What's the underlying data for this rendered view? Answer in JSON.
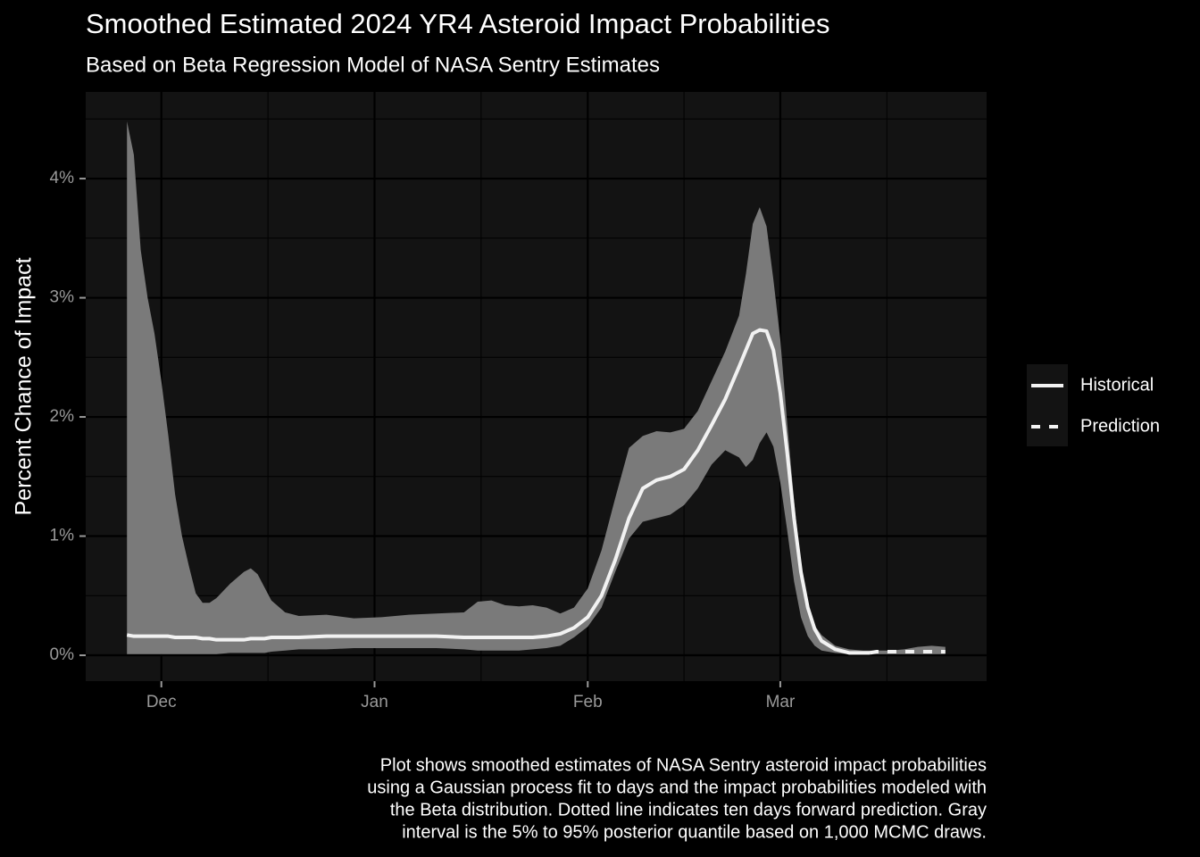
{
  "chart_data": {
    "type": "line",
    "title": "Smoothed Estimated 2024 YR4 Asteroid Impact Probabilities",
    "subtitle": "Based on Beta Regression Model of NASA Sentry Estimates",
    "ylabel": "Percent Chance of Impact",
    "caption": [
      "Plot shows smoothed estimates of NASA Sentry asteroid impact probabilities",
      "using a Gaussian process fit to days and the impact probabilities modeled with",
      "the Beta distribution. Dotted line indicates ten days forward prediction. Gray",
      "interval is the 5% to 95% posterior quantile based on 1,000 MCMC draws."
    ],
    "x": [
      -5,
      -4,
      -3,
      -2,
      -1,
      0,
      1,
      2,
      3,
      4,
      5,
      6,
      7,
      8,
      10,
      12,
      13,
      14,
      15,
      16,
      18,
      20,
      24,
      28,
      32,
      36,
      40,
      44,
      46,
      48,
      50,
      52,
      54,
      56,
      58,
      60,
      62,
      64,
      66,
      68,
      70,
      72,
      74,
      76,
      78,
      80,
      82,
      84,
      85,
      86,
      87,
      88,
      89,
      90,
      91,
      92,
      93,
      94,
      95,
      96,
      98,
      100,
      102,
      103,
      104,
      106,
      108,
      110,
      112,
      114
    ],
    "series": [
      {
        "name": "Historical",
        "color": "#f2f2f2",
        "dashed": false,
        "values": [
          0.17,
          0.16,
          0.16,
          0.16,
          0.16,
          0.16,
          0.16,
          0.15,
          0.15,
          0.15,
          0.15,
          0.14,
          0.14,
          0.13,
          0.13,
          0.13,
          0.14,
          0.14,
          0.14,
          0.15,
          0.15,
          0.15,
          0.16,
          0.16,
          0.16,
          0.16,
          0.16,
          0.15,
          0.15,
          0.15,
          0.15,
          0.15,
          0.15,
          0.16,
          0.18,
          0.23,
          0.32,
          0.5,
          0.8,
          1.15,
          1.4,
          1.47,
          1.5,
          1.56,
          1.72,
          1.93,
          2.15,
          2.42,
          2.56,
          2.7,
          2.73,
          2.72,
          2.56,
          2.2,
          1.7,
          1.15,
          0.7,
          0.4,
          0.22,
          0.12,
          0.05,
          0.02,
          0.02,
          0.02,
          null,
          null,
          null,
          null,
          null,
          null
        ]
      },
      {
        "name": "Prediction",
        "color": "#f2f2f2",
        "dashed": true,
        "values": [
          null,
          null,
          null,
          null,
          null,
          null,
          null,
          null,
          null,
          null,
          null,
          null,
          null,
          null,
          null,
          null,
          null,
          null,
          null,
          null,
          null,
          null,
          null,
          null,
          null,
          null,
          null,
          null,
          null,
          null,
          null,
          null,
          null,
          null,
          null,
          null,
          null,
          null,
          null,
          null,
          null,
          null,
          null,
          null,
          null,
          null,
          null,
          null,
          null,
          null,
          null,
          null,
          null,
          null,
          null,
          null,
          null,
          null,
          null,
          null,
          null,
          null,
          null,
          0.02,
          0.03,
          0.03,
          0.03,
          0.03,
          0.03,
          0.03
        ]
      }
    ],
    "band": {
      "color": "#7a7a7a",
      "upper": [
        4.48,
        4.2,
        3.4,
        3.0,
        2.7,
        2.3,
        1.85,
        1.35,
        1.0,
        0.75,
        0.52,
        0.44,
        0.44,
        0.48,
        0.6,
        0.7,
        0.73,
        0.68,
        0.57,
        0.46,
        0.36,
        0.33,
        0.34,
        0.31,
        0.32,
        0.34,
        0.35,
        0.36,
        0.45,
        0.46,
        0.42,
        0.41,
        0.42,
        0.4,
        0.35,
        0.4,
        0.56,
        0.88,
        1.32,
        1.74,
        1.84,
        1.88,
        1.87,
        1.9,
        2.05,
        2.3,
        2.55,
        2.85,
        3.2,
        3.62,
        3.76,
        3.6,
        3.15,
        2.65,
        1.95,
        1.3,
        0.75,
        0.4,
        0.25,
        0.17,
        0.08,
        0.05,
        0.04,
        0.04,
        0.04,
        0.04,
        0.05,
        0.07,
        0.08,
        0.07
      ],
      "lower": [
        0.01,
        0.01,
        0.01,
        0.01,
        0.01,
        0.01,
        0.01,
        0.01,
        0.01,
        0.01,
        0.01,
        0.01,
        0.01,
        0.01,
        0.02,
        0.02,
        0.02,
        0.02,
        0.02,
        0.03,
        0.04,
        0.05,
        0.05,
        0.06,
        0.06,
        0.06,
        0.06,
        0.05,
        0.04,
        0.04,
        0.04,
        0.04,
        0.05,
        0.06,
        0.08,
        0.15,
        0.24,
        0.4,
        0.7,
        0.98,
        1.12,
        1.15,
        1.18,
        1.26,
        1.4,
        1.6,
        1.72,
        1.66,
        1.58,
        1.64,
        1.78,
        1.87,
        1.75,
        1.45,
        1.05,
        0.62,
        0.32,
        0.16,
        0.08,
        0.04,
        0.02,
        0.01,
        0.01,
        0.01,
        0.01,
        0.01,
        0.01,
        0.01,
        0.01,
        0.01
      ]
    },
    "xlim": [
      -11,
      120
    ],
    "xticks": [
      {
        "value": 0,
        "label": "Dec"
      },
      {
        "value": 31,
        "label": "Jan"
      },
      {
        "value": 62,
        "label": "Feb"
      },
      {
        "value": 90,
        "label": "Mar"
      }
    ],
    "xminor": [
      15.5,
      46.5,
      76,
      105.5
    ],
    "ylim": [
      -0.217,
      4.727
    ],
    "yticks": [
      {
        "value": 0,
        "label": "0%"
      },
      {
        "value": 1,
        "label": "1%"
      },
      {
        "value": 2,
        "label": "2%"
      },
      {
        "value": 3,
        "label": "3%"
      },
      {
        "value": 4,
        "label": "4%"
      }
    ],
    "yminor": [
      0.5,
      1.5,
      2.5,
      3.5,
      4.5
    ],
    "grid": true,
    "legend": "right"
  }
}
